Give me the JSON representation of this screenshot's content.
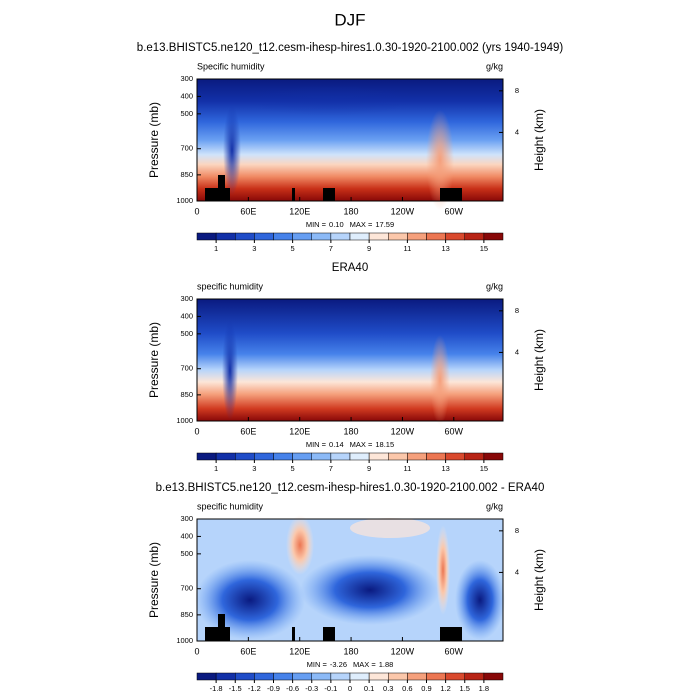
{
  "title": "DJF",
  "chart_data": [
    {
      "type": "contour",
      "title": "b.e13.BHISTC5.ne120_t12.cesm-ihesp-hires1.0.30-1920-2100.002 (yrs 1940-1949)",
      "subtitle_left": "Specific humidity",
      "subtitle_right": "g/kg",
      "xlim": [
        0,
        357.5
      ],
      "xticks": [
        0,
        {
          "value": 60,
          "label": "60E"
        },
        {
          "value": 120,
          "label": "120E"
        },
        180,
        {
          "value": 240,
          "label": "120W"
        },
        {
          "value": 300,
          "label": "60W"
        }
      ],
      "ylim": [
        1000,
        300
      ],
      "yticks": [
        300,
        400,
        500,
        700,
        850,
        1000
      ],
      "ylabel": "Pressure (mb)",
      "y2ticks": [
        4,
        8
      ],
      "y2label": "Height (km)",
      "min_text": "MIN =",
      "min": {
        "value": 0.1,
        "label": "0.10"
      },
      "max_text": "MAX =",
      "max": {
        "value": 17.59,
        "label": "17.59"
      },
      "colorbar": {
        "clim": [
          0,
          16
        ],
        "ticks": [
          1,
          3,
          5,
          7,
          9,
          11,
          13,
          15
        ],
        "colors": [
          "#0a1a80",
          "#1230a8",
          "#1f4cc8",
          "#2f66dc",
          "#4682ea",
          "#669ef2",
          "#8cbaf7",
          "#b6d4fb",
          "#dfeefd",
          "#fde6d8",
          "#fbc7aa",
          "#f5a07c",
          "#ec7652",
          "#d9492d",
          "#b82415",
          "#880808"
        ]
      }
    },
    {
      "type": "contour",
      "title": "ERA40",
      "subtitle_left": "specific humidity",
      "subtitle_right": "g/kg",
      "xlim": [
        0,
        357.5
      ],
      "xticks": [
        0,
        {
          "value": 60,
          "label": "60E"
        },
        {
          "value": 120,
          "label": "120E"
        },
        180,
        {
          "value": 240,
          "label": "120W"
        },
        {
          "value": 300,
          "label": "60W"
        }
      ],
      "ylim": [
        1000,
        300
      ],
      "yticks": [
        300,
        400,
        500,
        700,
        850,
        1000
      ],
      "ylabel": "Pressure (mb)",
      "y2ticks": [
        4,
        8
      ],
      "y2label": "Height (km)",
      "min_text": "MIN =",
      "min": {
        "value": 0.14,
        "label": "0.14"
      },
      "max_text": "MAX =",
      "max": {
        "value": 18.15,
        "label": "18.15"
      },
      "colorbar": {
        "clim": [
          0,
          16
        ],
        "ticks": [
          1,
          3,
          5,
          7,
          9,
          11,
          13,
          15
        ],
        "colors": [
          "#0a1a80",
          "#1230a8",
          "#1f4cc8",
          "#2f66dc",
          "#4682ea",
          "#669ef2",
          "#8cbaf7",
          "#b6d4fb",
          "#dfeefd",
          "#fde6d8",
          "#fbc7aa",
          "#f5a07c",
          "#ec7652",
          "#d9492d",
          "#b82415",
          "#880808"
        ]
      }
    },
    {
      "type": "contour",
      "title": "b.e13.BHISTC5.ne120_t12.cesm-ihesp-hires1.0.30-1920-2100.002 - ERA40",
      "subtitle_left": "specific humidity",
      "subtitle_right": "g/kg",
      "xlim": [
        0,
        357.5
      ],
      "xticks": [
        0,
        {
          "value": 60,
          "label": "60E"
        },
        {
          "value": 120,
          "label": "120E"
        },
        180,
        {
          "value": 240,
          "label": "120W"
        },
        {
          "value": 300,
          "label": "60W"
        }
      ],
      "ylim": [
        1000,
        300
      ],
      "yticks": [
        300,
        400,
        500,
        700,
        850,
        1000
      ],
      "ylabel": "Pressure (mb)",
      "y2ticks": [
        4,
        8
      ],
      "y2label": "Height (km)",
      "min_text": "MIN =",
      "min": {
        "value": -3.26,
        "label": "-3.26"
      },
      "max_text": "MAX =",
      "max": {
        "value": 1.88,
        "label": "1.88"
      },
      "colorbar": {
        "ticks": [
          -1.8,
          -1.5,
          -1.2,
          -0.9,
          -0.6,
          -0.3,
          -0.1,
          0,
          0.1,
          0.3,
          0.6,
          0.9,
          1.2,
          1.5,
          1.8
        ],
        "colors": [
          "#0a1a80",
          "#1230a8",
          "#1f4cc8",
          "#2f66dc",
          "#4682ea",
          "#669ef2",
          "#8cbaf7",
          "#b6d4fb",
          "#dfeefd",
          "#fde6d8",
          "#fbc7aa",
          "#f5a07c",
          "#ec7652",
          "#d9492d",
          "#b82415",
          "#880808"
        ]
      }
    }
  ]
}
